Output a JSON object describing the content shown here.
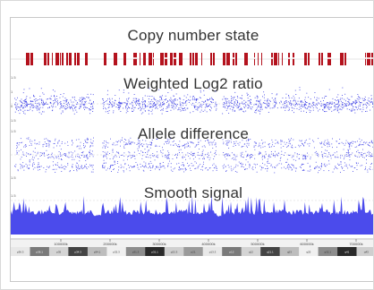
{
  "tracks": {
    "copy_number": {
      "title": "Copy number state",
      "color": "#b4121d"
    },
    "log2": {
      "title": "Weighted Log2 ratio",
      "color": "#3b3ee6"
    },
    "allele": {
      "title": "Allele difference",
      "color": "#4a4de8"
    },
    "smooth": {
      "title": "Smooth signal",
      "color": "#4b4bec"
    }
  },
  "axis": {
    "positions": [
      "100000k",
      "200000k",
      "300000k",
      "400000k",
      "500000k",
      "600000k",
      "700000k"
    ]
  },
  "ideogram": {
    "bands": [
      "p36.3",
      "p36.1",
      "p35",
      "p34.3",
      "p34.1",
      "p32.3",
      "p31.3",
      "p31.1",
      "p22.3",
      "p21",
      "p13.3",
      "p12",
      "q12",
      "q21.1",
      "q23",
      "q25",
      "q32.1",
      "q41",
      "q43"
    ]
  },
  "scale": {
    "labels": [
      "1.5",
      "1",
      "0.5",
      "0",
      "-0.5",
      "1.5"
    ]
  }
}
